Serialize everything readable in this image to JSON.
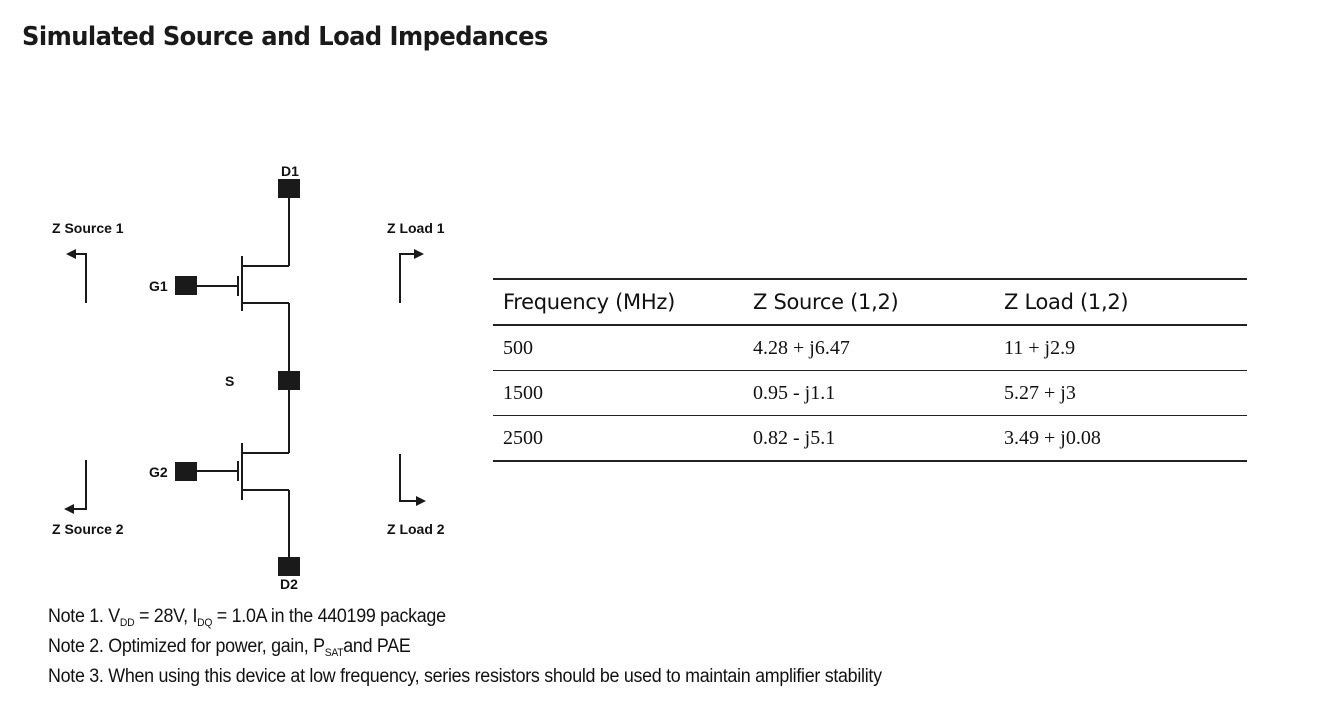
{
  "title": "Simulated Source and Load Impedances",
  "diagram": {
    "labels": {
      "d1": "D1",
      "d2": "D2",
      "g1": "G1",
      "g2": "G2",
      "s": "S",
      "z_source_1": "Z Source 1",
      "z_source_2": "Z Source 2",
      "z_load_1": "Z Load 1",
      "z_load_2": "Z Load 2"
    }
  },
  "table": {
    "headers": [
      "Frequency (MHz)",
      "Z Source (1,2)",
      "Z Load (1,2)"
    ],
    "rows": [
      [
        "500",
        "4.28 + j6.47",
        "11 + j2.9"
      ],
      [
        "1500",
        "0.95 - j1.1",
        "5.27 + j3"
      ],
      [
        "2500",
        "0.82 - j5.1",
        "3.49 + j0.08"
      ]
    ]
  },
  "notes": {
    "note1": {
      "prefix": "Note 1. V",
      "sub1": "DD",
      "mid": " = 28V, I",
      "sub2": "DQ",
      "suffix": " = 1.0A in the 440199 package"
    },
    "note2": {
      "prefix": "Note 2. Optimized for power, gain, P",
      "sub": "SAT",
      "suffix": "and PAE"
    },
    "note3": "Note 3. When using this device at low frequency, series resistors should be used to maintain amplifier stability"
  }
}
